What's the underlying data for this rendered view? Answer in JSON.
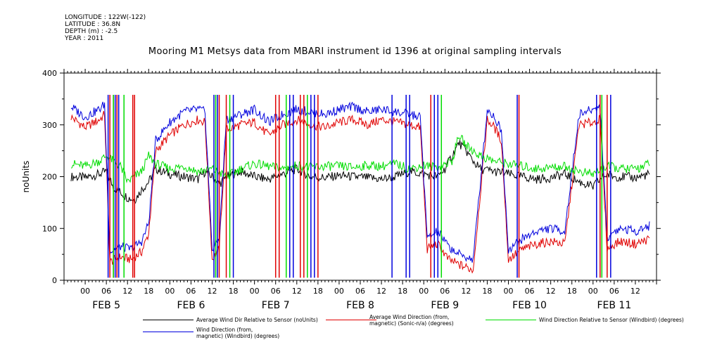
{
  "header": {
    "meta_lines": [
      "LONGITUDE : 122W(-122)",
      "LATITUDE : 36.8N",
      "DEPTH (m) : -2.5",
      "YEAR : 2011"
    ],
    "title": "Mooring M1 Metsys data from MBARI instrument id 1396 at original sampling intervals"
  },
  "chart_data": {
    "type": "line",
    "title": "Mooring M1 Metsys data from MBARI instrument id 1396 at original sampling intervals",
    "xlabel": "",
    "ylabel": "noUnits",
    "ylim": [
      0,
      400
    ],
    "yticks": [
      0,
      100,
      200,
      300,
      400
    ],
    "xlim_hours": [
      -6,
      162
    ],
    "hour_tick_labels": [
      "00",
      "06",
      "12",
      "18"
    ],
    "date_labels": [
      "FEB  5",
      "FEB  6",
      "FEB  7",
      "FEB  8",
      "FEB  9",
      "FEB 10",
      "FEB 11"
    ],
    "grid": false,
    "legend_position": "bottom",
    "series": [
      {
        "name": "Average Wind Dir Relative to Sensor (noUnits)",
        "color": "#000000",
        "x_hours": [
          -4,
          0,
          4,
          6,
          8,
          10,
          12,
          14,
          16,
          18,
          20,
          24,
          28,
          32,
          34,
          36,
          38,
          40,
          44,
          48,
          52,
          56,
          60,
          64,
          68,
          72,
          76,
          80,
          84,
          88,
          92,
          96,
          100,
          102,
          104,
          106,
          108,
          110,
          112,
          116,
          120,
          124,
          128,
          132,
          136,
          140,
          144,
          146,
          148,
          150,
          152,
          156,
          160
        ],
        "values": [
          200,
          198,
          205,
          210,
          180,
          170,
          160,
          155,
          175,
          190,
          215,
          205,
          200,
          195,
          210,
          200,
          185,
          200,
          210,
          200,
          195,
          205,
          215,
          200,
          198,
          202,
          200,
          198,
          195,
          200,
          210,
          205,
          200,
          215,
          240,
          265,
          250,
          230,
          215,
          210,
          205,
          200,
          195,
          198,
          205,
          190,
          180,
          195,
          205,
          200,
          200,
          198,
          205
        ]
      },
      {
        "name": "Average Wind Direction (from,\nmagnetic) (Sonic-n/a) (degrees)",
        "color": "#e00000",
        "x_hours": [
          -4,
          0,
          4,
          5.5,
          7,
          10,
          13,
          16,
          18,
          20,
          24,
          28,
          32,
          34,
          36,
          38,
          40,
          44,
          48,
          52,
          56,
          60,
          64,
          68,
          72,
          76,
          80,
          84,
          88,
          92,
          95,
          97,
          100,
          103,
          106,
          110,
          114,
          116,
          118,
          120,
          124,
          128,
          132,
          136,
          140,
          144,
          146,
          148,
          150,
          152,
          156,
          160
        ],
        "values": [
          315,
          295,
          310,
          320,
          35,
          45,
          40,
          55,
          90,
          250,
          280,
          300,
          310,
          305,
          40,
          60,
          290,
          300,
          305,
          280,
          300,
          310,
          300,
          295,
          305,
          310,
          300,
          310,
          305,
          300,
          295,
          60,
          70,
          40,
          30,
          20,
          310,
          295,
          270,
          40,
          60,
          70,
          75,
          70,
          300,
          305,
          310,
          60,
          70,
          75,
          70,
          80
        ]
      },
      {
        "name": "Wind Direction Relative to Sensor (Windbird) (degrees)",
        "color": "#00dd00",
        "x_hours": [
          -4,
          0,
          4,
          6,
          8,
          10,
          12,
          14,
          16,
          18,
          20,
          24,
          28,
          32,
          36,
          40,
          44,
          48,
          52,
          56,
          60,
          64,
          68,
          72,
          76,
          80,
          84,
          88,
          92,
          96,
          100,
          104,
          106,
          108,
          112,
          116,
          120,
          124,
          128,
          132,
          136,
          140,
          144,
          148,
          152,
          156,
          160
        ],
        "values": [
          225,
          220,
          230,
          240,
          230,
          220,
          190,
          200,
          210,
          240,
          225,
          215,
          220,
          210,
          215,
          200,
          215,
          225,
          220,
          215,
          222,
          218,
          220,
          220,
          218,
          222,
          220,
          225,
          215,
          222,
          218,
          230,
          280,
          260,
          240,
          230,
          225,
          220,
          215,
          218,
          220,
          210,
          205,
          220,
          215,
          215,
          225
        ]
      },
      {
        "name": "Wind Direction (from,\nmagnetic) (Windbird) (degrees)",
        "color": "#0000dd",
        "x_hours": [
          -4,
          0,
          4,
          5.5,
          7,
          10,
          13,
          16,
          18,
          20,
          24,
          28,
          32,
          34,
          36,
          38,
          40,
          44,
          48,
          52,
          56,
          60,
          64,
          68,
          72,
          76,
          80,
          84,
          88,
          92,
          95,
          97,
          100,
          103,
          106,
          110,
          114,
          116,
          118,
          120,
          124,
          128,
          132,
          136,
          140,
          144,
          146,
          148,
          150,
          152,
          156,
          160
        ],
        "values": [
          335,
          315,
          330,
          340,
          55,
          65,
          60,
          75,
          110,
          270,
          305,
          325,
          330,
          325,
          60,
          80,
          310,
          320,
          330,
          305,
          320,
          330,
          325,
          320,
          330,
          335,
          325,
          330,
          325,
          320,
          315,
          80,
          95,
          65,
          50,
          40,
          330,
          315,
          290,
          60,
          80,
          95,
          100,
          95,
          320,
          330,
          335,
          80,
          95,
          100,
          95,
          105
        ]
      }
    ],
    "spikes": [
      {
        "series": 1,
        "x_hours": [
          7,
          8,
          9,
          13.5,
          14,
          38,
          40,
          54,
          55,
          61,
          62,
          66,
          98,
          99,
          123,
          146,
          148
        ]
      },
      {
        "series": 3,
        "x_hours": [
          6.5,
          8.5,
          9.5,
          36.5,
          37.5,
          42,
          58,
          59,
          64,
          65,
          87,
          91,
          92,
          99,
          100,
          122.5,
          145,
          149
        ]
      },
      {
        "series": 2,
        "x_hours": [
          8,
          11,
          37,
          41,
          57,
          63,
          101,
          146.5
        ]
      }
    ]
  }
}
